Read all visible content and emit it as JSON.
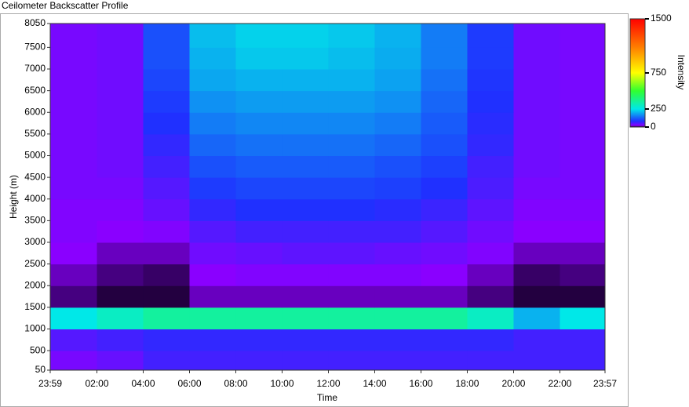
{
  "chart_data": {
    "type": "heatmap",
    "title": "Ceilometer Backscatter Profile",
    "x_label": "Time",
    "y_label": "Height (m)",
    "colorbar_label": "Intensity",
    "xlim": [
      -0.017,
      23.95
    ],
    "xticks": [
      {
        "value": -0.017,
        "label": "23:59"
      },
      {
        "value": 2,
        "label": "02:00"
      },
      {
        "value": 4,
        "label": "04:00"
      },
      {
        "value": 6,
        "label": "06:00"
      },
      {
        "value": 8,
        "label": "08:00"
      },
      {
        "value": 10,
        "label": "10:00"
      },
      {
        "value": 12,
        "label": "12:00"
      },
      {
        "value": 14,
        "label": "14:00"
      },
      {
        "value": 16,
        "label": "16:00"
      },
      {
        "value": 18,
        "label": "18:00"
      },
      {
        "value": 20,
        "label": "20:00"
      },
      {
        "value": 22,
        "label": "22:00"
      },
      {
        "value": 23.95,
        "label": "23:57"
      }
    ],
    "ylim": [
      50,
      8050
    ],
    "yticks": [
      50,
      500,
      1000,
      1500,
      2000,
      2500,
      3000,
      3500,
      4000,
      4500,
      5000,
      5500,
      6000,
      6500,
      7000,
      7500,
      8050
    ],
    "x_edges": [
      -0.017,
      2,
      4,
      6,
      8,
      10,
      12,
      14,
      16,
      18,
      20,
      22,
      23.95
    ],
    "y_edges": [
      50,
      500,
      1000,
      1500,
      2000,
      2500,
      3000,
      3500,
      4000,
      4500,
      5000,
      5500,
      6000,
      6500,
      7000,
      7500,
      8050
    ],
    "z": [
      [
        30,
        40,
        60,
        60,
        60,
        60,
        60,
        60,
        60,
        60,
        60,
        60
      ],
      [
        50,
        60,
        70,
        70,
        70,
        70,
        70,
        70,
        70,
        70,
        60,
        60
      ],
      [
        250,
        300,
        350,
        350,
        350,
        350,
        350,
        350,
        350,
        300,
        200,
        250
      ],
      [
        10,
        5,
        5,
        15,
        15,
        15,
        15,
        15,
        15,
        10,
        5,
        5
      ],
      [
        15,
        10,
        8,
        20,
        25,
        25,
        25,
        25,
        20,
        15,
        8,
        10
      ],
      [
        20,
        15,
        15,
        35,
        40,
        45,
        45,
        40,
        35,
        25,
        15,
        15
      ],
      [
        25,
        20,
        25,
        50,
        60,
        60,
        60,
        60,
        50,
        35,
        20,
        20
      ],
      [
        25,
        25,
        40,
        70,
        80,
        80,
        80,
        75,
        65,
        45,
        25,
        25
      ],
      [
        30,
        30,
        50,
        90,
        100,
        100,
        100,
        95,
        80,
        55,
        30,
        30
      ],
      [
        30,
        35,
        60,
        110,
        120,
        120,
        120,
        110,
        95,
        60,
        35,
        30
      ],
      [
        30,
        35,
        70,
        130,
        140,
        140,
        140,
        130,
        110,
        70,
        35,
        30
      ],
      [
        30,
        35,
        80,
        150,
        160,
        160,
        160,
        150,
        120,
        75,
        35,
        30
      ],
      [
        30,
        35,
        90,
        170,
        180,
        180,
        180,
        170,
        130,
        80,
        35,
        30
      ],
      [
        30,
        35,
        100,
        190,
        200,
        200,
        200,
        185,
        140,
        85,
        35,
        30
      ],
      [
        30,
        35,
        110,
        200,
        220,
        220,
        210,
        195,
        150,
        90,
        35,
        30
      ],
      [
        30,
        35,
        110,
        210,
        230,
        230,
        220,
        200,
        150,
        90,
        35,
        30
      ]
    ],
    "zlim": [
      0,
      1500
    ],
    "zticks": [
      0,
      250,
      750,
      1500
    ],
    "colorscale": [
      [
        0,
        "#000000"
      ],
      [
        20,
        "#8a00ff"
      ],
      [
        80,
        "#2030ff"
      ],
      [
        250,
        "#00e8e8"
      ],
      [
        500,
        "#30ff30"
      ],
      [
        750,
        "#ffff00"
      ],
      [
        1100,
        "#ff8000"
      ],
      [
        1500,
        "#ff0000"
      ]
    ]
  }
}
